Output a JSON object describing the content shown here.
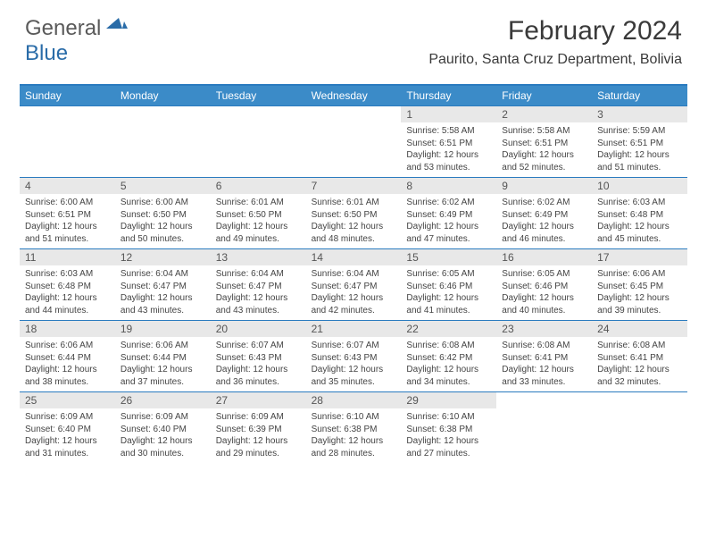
{
  "logo": {
    "general": "General",
    "blue": "Blue"
  },
  "title": "February 2024",
  "location": "Paurito, Santa Cruz Department, Bolivia",
  "colors": {
    "header_bg": "#3b8bc8",
    "border": "#2a7bbf",
    "daynum_bg": "#e8e8e8",
    "text": "#3a3a3a"
  },
  "weekdays": [
    "Sunday",
    "Monday",
    "Tuesday",
    "Wednesday",
    "Thursday",
    "Friday",
    "Saturday"
  ],
  "weeks": [
    [
      null,
      null,
      null,
      null,
      {
        "n": "1",
        "sr": "5:58 AM",
        "ss": "6:51 PM",
        "dl": "12 hours and 53 minutes."
      },
      {
        "n": "2",
        "sr": "5:58 AM",
        "ss": "6:51 PM",
        "dl": "12 hours and 52 minutes."
      },
      {
        "n": "3",
        "sr": "5:59 AM",
        "ss": "6:51 PM",
        "dl": "12 hours and 51 minutes."
      }
    ],
    [
      {
        "n": "4",
        "sr": "6:00 AM",
        "ss": "6:51 PM",
        "dl": "12 hours and 51 minutes."
      },
      {
        "n": "5",
        "sr": "6:00 AM",
        "ss": "6:50 PM",
        "dl": "12 hours and 50 minutes."
      },
      {
        "n": "6",
        "sr": "6:01 AM",
        "ss": "6:50 PM",
        "dl": "12 hours and 49 minutes."
      },
      {
        "n": "7",
        "sr": "6:01 AM",
        "ss": "6:50 PM",
        "dl": "12 hours and 48 minutes."
      },
      {
        "n": "8",
        "sr": "6:02 AM",
        "ss": "6:49 PM",
        "dl": "12 hours and 47 minutes."
      },
      {
        "n": "9",
        "sr": "6:02 AM",
        "ss": "6:49 PM",
        "dl": "12 hours and 46 minutes."
      },
      {
        "n": "10",
        "sr": "6:03 AM",
        "ss": "6:48 PM",
        "dl": "12 hours and 45 minutes."
      }
    ],
    [
      {
        "n": "11",
        "sr": "6:03 AM",
        "ss": "6:48 PM",
        "dl": "12 hours and 44 minutes."
      },
      {
        "n": "12",
        "sr": "6:04 AM",
        "ss": "6:47 PM",
        "dl": "12 hours and 43 minutes."
      },
      {
        "n": "13",
        "sr": "6:04 AM",
        "ss": "6:47 PM",
        "dl": "12 hours and 43 minutes."
      },
      {
        "n": "14",
        "sr": "6:04 AM",
        "ss": "6:47 PM",
        "dl": "12 hours and 42 minutes."
      },
      {
        "n": "15",
        "sr": "6:05 AM",
        "ss": "6:46 PM",
        "dl": "12 hours and 41 minutes."
      },
      {
        "n": "16",
        "sr": "6:05 AM",
        "ss": "6:46 PM",
        "dl": "12 hours and 40 minutes."
      },
      {
        "n": "17",
        "sr": "6:06 AM",
        "ss": "6:45 PM",
        "dl": "12 hours and 39 minutes."
      }
    ],
    [
      {
        "n": "18",
        "sr": "6:06 AM",
        "ss": "6:44 PM",
        "dl": "12 hours and 38 minutes."
      },
      {
        "n": "19",
        "sr": "6:06 AM",
        "ss": "6:44 PM",
        "dl": "12 hours and 37 minutes."
      },
      {
        "n": "20",
        "sr": "6:07 AM",
        "ss": "6:43 PM",
        "dl": "12 hours and 36 minutes."
      },
      {
        "n": "21",
        "sr": "6:07 AM",
        "ss": "6:43 PM",
        "dl": "12 hours and 35 minutes."
      },
      {
        "n": "22",
        "sr": "6:08 AM",
        "ss": "6:42 PM",
        "dl": "12 hours and 34 minutes."
      },
      {
        "n": "23",
        "sr": "6:08 AM",
        "ss": "6:41 PM",
        "dl": "12 hours and 33 minutes."
      },
      {
        "n": "24",
        "sr": "6:08 AM",
        "ss": "6:41 PM",
        "dl": "12 hours and 32 minutes."
      }
    ],
    [
      {
        "n": "25",
        "sr": "6:09 AM",
        "ss": "6:40 PM",
        "dl": "12 hours and 31 minutes."
      },
      {
        "n": "26",
        "sr": "6:09 AM",
        "ss": "6:40 PM",
        "dl": "12 hours and 30 minutes."
      },
      {
        "n": "27",
        "sr": "6:09 AM",
        "ss": "6:39 PM",
        "dl": "12 hours and 29 minutes."
      },
      {
        "n": "28",
        "sr": "6:10 AM",
        "ss": "6:38 PM",
        "dl": "12 hours and 28 minutes."
      },
      {
        "n": "29",
        "sr": "6:10 AM",
        "ss": "6:38 PM",
        "dl": "12 hours and 27 minutes."
      },
      null,
      null
    ]
  ],
  "labels": {
    "sunrise": "Sunrise:",
    "sunset": "Sunset:",
    "daylight": "Daylight:"
  }
}
